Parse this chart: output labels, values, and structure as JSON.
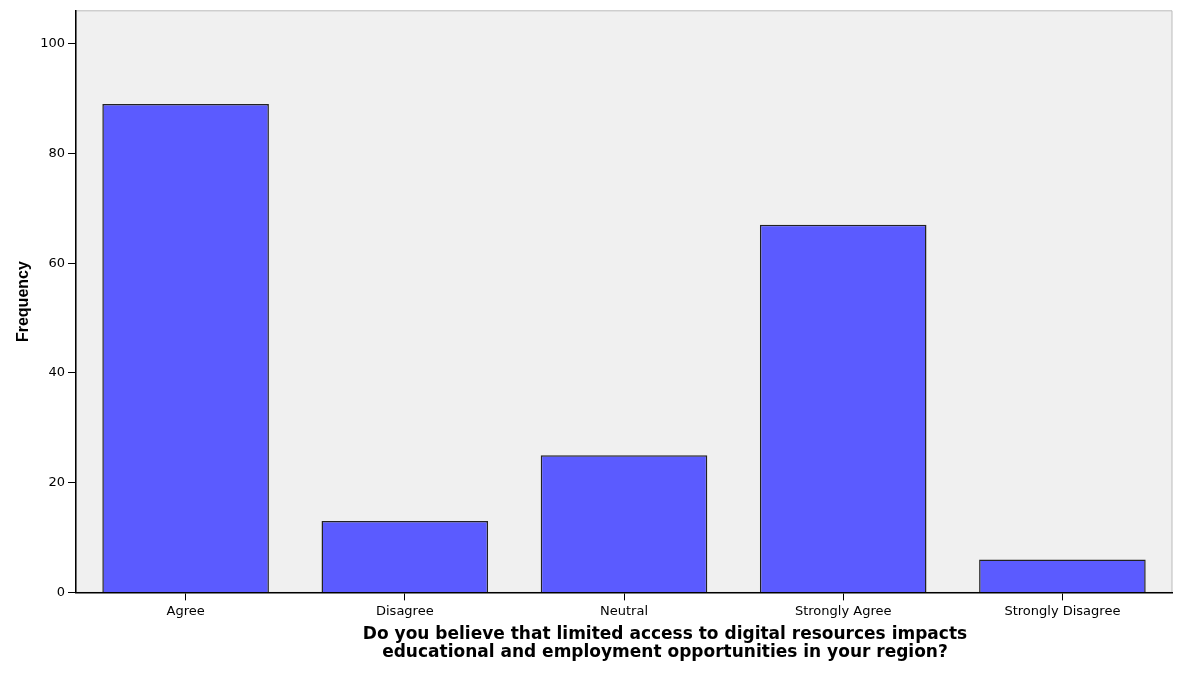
{
  "chart_data": {
    "type": "bar",
    "xlabel": "Do you believe that limited access to digital resources impacts educational and employment opportunities in your region?",
    "ylabel": "Frequency",
    "categories": [
      "Agree",
      "Disagree",
      "Neutral",
      "Strongly Agree",
      "Strongly Disagree"
    ],
    "values": [
      89,
      13,
      25,
      67,
      6
    ],
    "color": "#5b5bff",
    "ylim": [
      0,
      106
    ],
    "yticks": [
      0,
      20,
      40,
      60,
      80,
      100
    ],
    "grid": false,
    "legend": false
  }
}
